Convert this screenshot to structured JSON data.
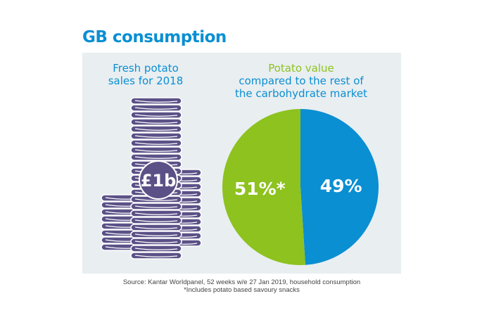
{
  "title": "GB consumption",
  "left_panel": {
    "label_lines": [
      "Fresh potato",
      "sales for 2018"
    ],
    "coin_value": "£1b",
    "icon": "coin-stack-icon",
    "color": "#5b5187"
  },
  "right_panel": {
    "label_lines": [
      "Potato value",
      "compared to the rest of",
      "the carbohydrate market"
    ]
  },
  "chart_data": {
    "type": "pie",
    "title": "Potato value compared to the rest of the carbohydrate market",
    "slices": [
      {
        "name": "Potato",
        "value": 49,
        "label": "49%",
        "color": "#0a8fd2"
      },
      {
        "name": "Rest of carbohydrate market",
        "value": 51,
        "label": "51%*",
        "color": "#8dc21f"
      }
    ]
  },
  "source": {
    "line1": "Source: Kantar Worldpanel, 52 weeks w/e 27 Jan 2019, household consumption",
    "line2": "*Includes potato based savoury snacks"
  }
}
